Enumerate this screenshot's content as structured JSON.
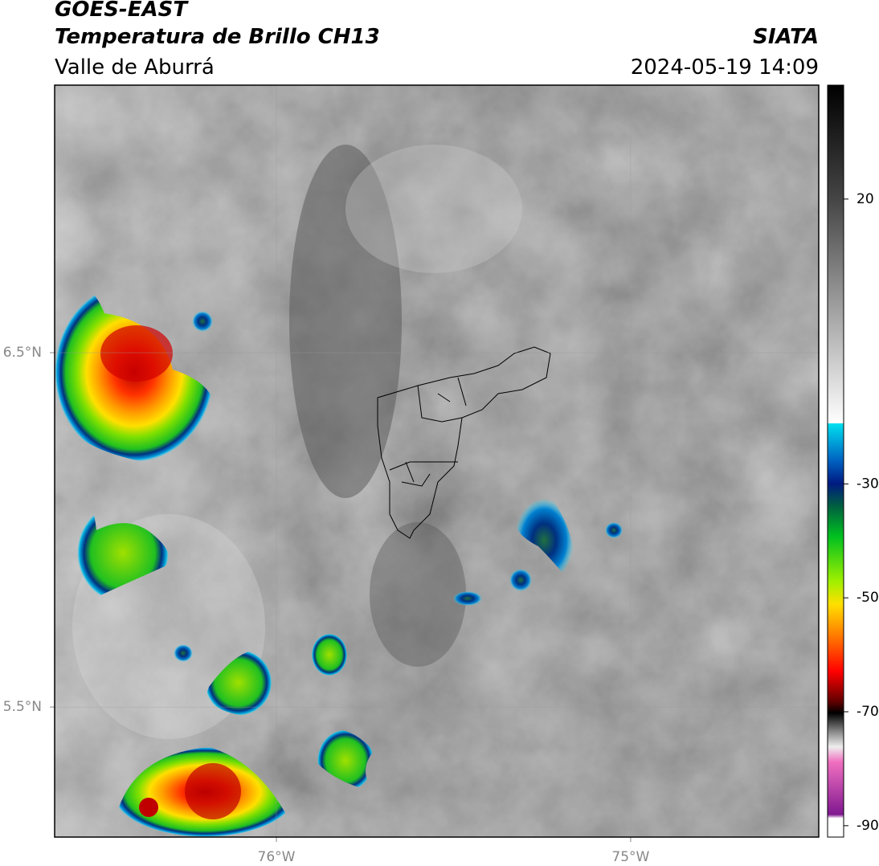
{
  "header": {
    "title": "GOES-EAST",
    "subtitle": "Temperatura de Brillo CH13",
    "region": "Valle de Aburrá",
    "source": "SIATA",
    "datetime": "2024-05-19 14:09"
  },
  "map": {
    "xlim": [
      -76.626,
      -74.469
    ],
    "ylim": [
      5.133,
      7.255
    ],
    "xticks": [
      {
        "value": -76,
        "label": "76°W"
      },
      {
        "value": -75,
        "label": "75°W"
      }
    ],
    "yticks": [
      {
        "value": 6.5,
        "label": "6.5°N"
      },
      {
        "value": 5.5,
        "label": "5.5°N"
      }
    ]
  },
  "colorbar": {
    "lim": [
      -92,
      40
    ],
    "ticks": [
      20,
      -30,
      -50,
      -70,
      -90
    ]
  }
}
